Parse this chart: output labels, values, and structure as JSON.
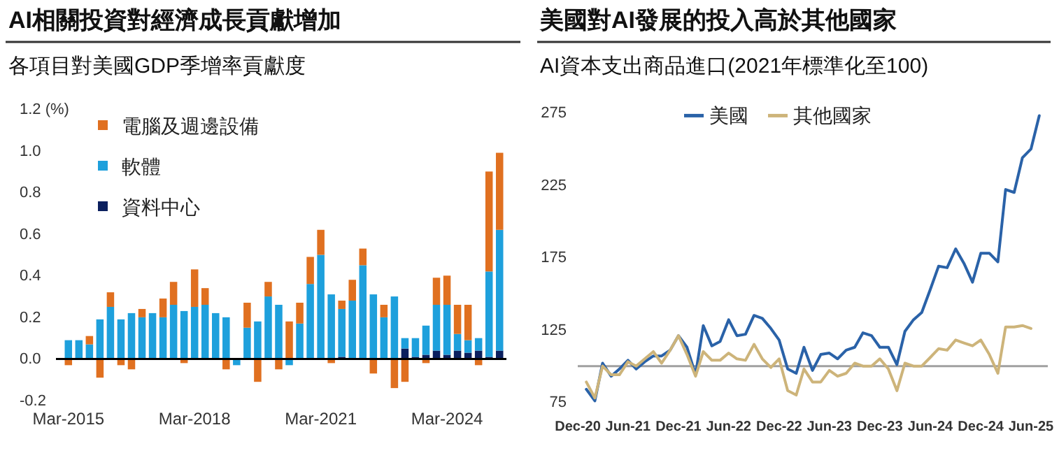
{
  "chart_data": [
    {
      "type": "bar",
      "title": "AI相關投資對經濟成長貢獻增加",
      "subtitle": "各項目對美國GDP季增率貢獻度",
      "stacked": true,
      "legend": "top left",
      "categories": [
        "Mar-2015",
        null,
        null,
        null,
        null,
        null,
        null,
        null,
        null,
        null,
        null,
        null,
        "Mar-2018",
        null,
        null,
        null,
        null,
        null,
        null,
        null,
        null,
        null,
        null,
        null,
        "Mar-2021",
        null,
        null,
        null,
        null,
        null,
        null,
        null,
        null,
        null,
        null,
        null,
        "Mar-2024",
        null,
        null,
        null,
        null,
        null
      ],
      "ylim": [
        -0.2,
        1.2
      ],
      "yticks": [
        -0.2,
        {
          "value": 0,
          "label": "0.0"
        },
        0.2,
        0.4,
        0.6,
        0.8,
        {
          "value": 1,
          "label": "1.0"
        },
        {
          "value": 1.2,
          "label": "1.2 (%)"
        }
      ],
      "series": [
        {
          "name": "資料中心",
          "color": "#0b1f5e",
          "values": [
            0,
            0,
            0,
            0,
            0,
            0,
            0,
            0,
            0,
            0,
            0,
            0,
            0,
            0,
            0,
            0,
            0,
            0,
            0,
            0,
            0,
            0,
            0,
            0,
            0,
            0,
            0.01,
            0,
            0,
            0,
            0,
            0,
            0.05,
            0.01,
            0.02,
            0.04,
            0.02,
            0.04,
            0.03,
            0.04,
            0.01,
            0.04
          ]
        },
        {
          "name": "軟體",
          "color": "#1ea0dc",
          "values": [
            0.09,
            0.09,
            0.07,
            0.19,
            0.25,
            0.19,
            0.22,
            0.2,
            0.22,
            0.2,
            0.26,
            0.23,
            0.25,
            0.26,
            0.22,
            0.2,
            -0.03,
            0.15,
            0.18,
            0.3,
            0.26,
            -0.03,
            0.17,
            0.36,
            0.5,
            0.31,
            0.23,
            0.28,
            0.45,
            0.31,
            0.2,
            0.3,
            0.05,
            0.09,
            0.14,
            0.22,
            0.24,
            0.08,
            0.06,
            0.06,
            0.41,
            0.58
          ]
        },
        {
          "name": "電腦及週邊設備",
          "color": "#e07020",
          "values": [
            -0.03,
            0,
            0.04,
            -0.09,
            0.07,
            -0.03,
            -0.05,
            0.04,
            0,
            0.09,
            0.11,
            -0.02,
            0.18,
            0.08,
            0,
            -0.05,
            0,
            0.12,
            -0.11,
            0.07,
            -0.05,
            0.18,
            0.1,
            0.13,
            0.12,
            -0.02,
            0.04,
            0.1,
            0.08,
            -0.07,
            0.06,
            -0.14,
            -0.11,
            0,
            -0.02,
            0.13,
            0.14,
            0.14,
            0.17,
            -0.03,
            0.48,
            0.37
          ]
        }
      ]
    },
    {
      "type": "line",
      "title": "美國對AI發展的投入高於其他國家",
      "subtitle": "AI資本支出商品進口(2021年標準化至100)",
      "legend": "top",
      "xlim": [
        "2020-12",
        "2025-08"
      ],
      "xticks": [
        {
          "value": "2020-12",
          "label": "Dec-20"
        },
        {
          "value": "2021-06",
          "label": "Jun-21"
        },
        {
          "value": "2021-12",
          "label": "Dec-21"
        },
        {
          "value": "2022-06",
          "label": "Jun-22"
        },
        {
          "value": "2022-12",
          "label": "Dec-22"
        },
        {
          "value": "2023-06",
          "label": "Jun-23"
        },
        {
          "value": "2023-12",
          "label": "Dec-23"
        },
        {
          "value": "2024-06",
          "label": "Jun-24"
        },
        {
          "value": "2024-12",
          "label": "Dec-24"
        },
        {
          "value": "2025-06",
          "label": "Jun-25"
        }
      ],
      "ylim": [
        75,
        275
      ],
      "yticks": [
        75,
        125,
        175,
        225,
        275
      ],
      "ref_lines": [
        {
          "axis": "y",
          "value": 100,
          "color": "#a0a0a0"
        }
      ],
      "series": [
        {
          "name": "美國",
          "color": "#2a62a8",
          "x": [
            "2021-01",
            "2021-02",
            "2021-03",
            "2021-04",
            "2021-05",
            "2021-06",
            "2021-07",
            "2021-08",
            "2021-09",
            "2021-10",
            "2021-11",
            "2021-12",
            "2022-01",
            "2022-02",
            "2022-03",
            "2022-04",
            "2022-05",
            "2022-06",
            "2022-07",
            "2022-08",
            "2022-09",
            "2022-10",
            "2022-11",
            "2022-12",
            "2023-01",
            "2023-02",
            "2023-03",
            "2023-04",
            "2023-05",
            "2023-06",
            "2023-07",
            "2023-08",
            "2023-09",
            "2023-10",
            "2023-11",
            "2023-12",
            "2024-01",
            "2024-02",
            "2024-03",
            "2024-04",
            "2024-05",
            "2024-06",
            "2024-07",
            "2024-08",
            "2024-09",
            "2024-10",
            "2024-11",
            "2024-12",
            "2025-01",
            "2025-02",
            "2025-03",
            "2025-04",
            "2025-05",
            "2025-06",
            "2025-07"
          ],
          "values": [
            84,
            76,
            102,
            93,
            98,
            104,
            98,
            103,
            107,
            107,
            111,
            121,
            113,
            94,
            128,
            114,
            117,
            132,
            121,
            122,
            135,
            133,
            126,
            118,
            98,
            95,
            113,
            97,
            108,
            109,
            105,
            111,
            113,
            123,
            121,
            113,
            113,
            101,
            124,
            132,
            137,
            153,
            169,
            168,
            181,
            171,
            158,
            178,
            178,
            172,
            222,
            220,
            244,
            250,
            273
          ]
        },
        {
          "name": "其他國家",
          "color": "#cdb47a",
          "x": [
            "2021-01",
            "2021-02",
            "2021-03",
            "2021-04",
            "2021-05",
            "2021-06",
            "2021-07",
            "2021-08",
            "2021-09",
            "2021-10",
            "2021-11",
            "2021-12",
            "2022-01",
            "2022-02",
            "2022-03",
            "2022-04",
            "2022-05",
            "2022-06",
            "2022-07",
            "2022-08",
            "2022-09",
            "2022-10",
            "2022-11",
            "2022-12",
            "2023-01",
            "2023-02",
            "2023-03",
            "2023-04",
            "2023-05",
            "2023-06",
            "2023-07",
            "2023-08",
            "2023-09",
            "2023-10",
            "2023-11",
            "2023-12",
            "2024-01",
            "2024-02",
            "2024-03",
            "2024-04",
            "2024-05",
            "2024-06",
            "2024-07",
            "2024-08",
            "2024-09",
            "2024-10",
            "2024-11",
            "2024-12",
            "2025-01",
            "2025-02",
            "2025-03",
            "2025-04",
            "2025-05",
            "2025-06"
          ],
          "values": [
            89,
            78,
            100,
            94,
            94,
            103,
            100,
            105,
            110,
            102,
            111,
            121,
            108,
            93,
            110,
            104,
            104,
            109,
            105,
            104,
            115,
            105,
            99,
            105,
            83,
            80,
            98,
            89,
            89,
            97,
            93,
            95,
            102,
            100,
            100,
            105,
            98,
            83,
            102,
            100,
            100,
            106,
            112,
            111,
            118,
            116,
            114,
            118,
            108,
            95,
            127,
            127,
            128,
            126
          ]
        }
      ]
    }
  ]
}
